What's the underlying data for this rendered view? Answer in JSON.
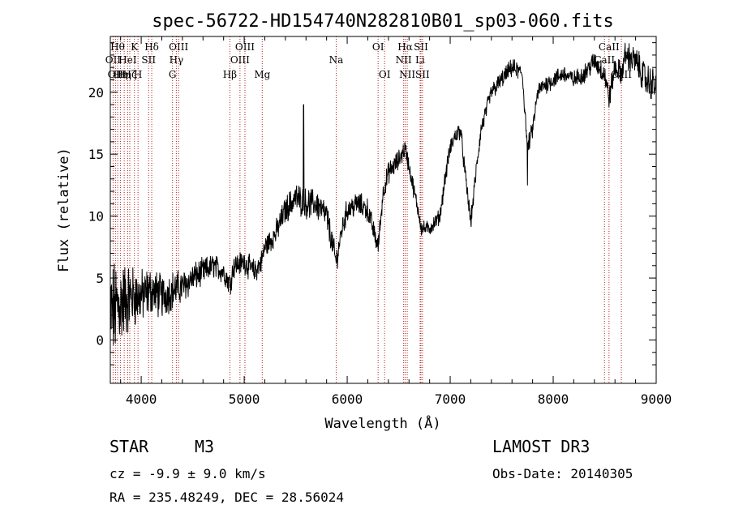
{
  "chart_data": {
    "type": "line",
    "title": "spec-56722-HD154740N282810B01_sp03-060.fits",
    "xlabel": "Wavelength (Å)",
    "ylabel": "Flux (relative)",
    "xlim": [
      3700,
      9000
    ],
    "ylim": [
      -3.5,
      24.5
    ],
    "xticks": [
      4000,
      5000,
      6000,
      7000,
      8000,
      9000
    ],
    "yticks": [
      0,
      5,
      10,
      15,
      20
    ],
    "spectrum_anchors": {
      "x": [
        3700,
        3800,
        3900,
        4000,
        4100,
        4200,
        4300,
        4400,
        4500,
        4600,
        4700,
        4800,
        4861,
        4900,
        5000,
        5100,
        5167,
        5200,
        5300,
        5400,
        5500,
        5600,
        5700,
        5800,
        5893,
        5950,
        6000,
        6100,
        6200,
        6250,
        6300,
        6350,
        6400,
        6500,
        6563,
        6600,
        6650,
        6700,
        6720,
        6800,
        6900,
        6950,
        7000,
        7050,
        7100,
        7150,
        7200,
        7250,
        7300,
        7350,
        7400,
        7500,
        7600,
        7700,
        7750,
        7800,
        7850,
        7900,
        8000,
        8100,
        8200,
        8300,
        8400,
        8498,
        8542,
        8600,
        8662,
        8700,
        8800,
        8900,
        9000
      ],
      "y": [
        2,
        3,
        3.5,
        3.5,
        4,
        3.5,
        4,
        4.3,
        5,
        5.5,
        6,
        5.5,
        4.5,
        6,
        6.3,
        5.5,
        6.3,
        7.5,
        8.5,
        10.5,
        11.5,
        11,
        11,
        10,
        6.3,
        9,
        10.5,
        11,
        10.5,
        9,
        7.5,
        12,
        13.5,
        14.5,
        15.5,
        14,
        12,
        10,
        9,
        9,
        10,
        13,
        15.5,
        16.5,
        17,
        13,
        9.5,
        13.5,
        17,
        18.5,
        20,
        21,
        22,
        21.5,
        15.5,
        17,
        20,
        20.5,
        21,
        21.5,
        21,
        21.5,
        22.5,
        21.5,
        19.5,
        22,
        21.5,
        23,
        22.5,
        21,
        20.5
      ],
      "noise_amplitude": [
        3.5,
        3,
        2.2,
        1.8,
        1.6,
        1.5,
        1.3,
        1.1,
        1,
        0.9,
        0.8,
        0.8,
        0.8,
        0.8,
        0.8,
        0.8,
        0.8,
        0.8,
        0.8,
        0.9,
        1,
        1,
        1,
        1,
        0.8,
        0.8,
        0.8,
        0.8,
        0.8,
        0.7,
        0.7,
        0.7,
        0.7,
        0.7,
        0.6,
        0.6,
        0.6,
        0.5,
        0.5,
        0.5,
        0.5,
        0.6,
        0.6,
        0.6,
        0.6,
        0.6,
        0.6,
        0.6,
        0.6,
        0.6,
        0.6,
        0.6,
        0.6,
        0.6,
        0.6,
        0.6,
        0.6,
        0.6,
        0.6,
        0.6,
        0.6,
        0.6,
        0.7,
        0.8,
        0.8,
        0.8,
        0.8,
        0.9,
        1,
        1.1,
        1.2
      ]
    },
    "spikes": [
      {
        "x": 5577,
        "y": 19
      },
      {
        "x": 7750,
        "y": 12.5
      }
    ],
    "spectral_lines": [
      {
        "wavelength": 3727,
        "label": "OII",
        "row": 2
      },
      {
        "wavelength": 3750,
        "label": "OII",
        "row": 3
      },
      {
        "wavelength": 3771,
        "label": "Hθ",
        "row": 1
      },
      {
        "wavelength": 3798,
        "label": "Hη",
        "row": 3
      },
      {
        "wavelength": 3835,
        "label": "Hη",
        "row": 3
      },
      {
        "wavelength": 3869,
        "label": "HeI",
        "row": 2
      },
      {
        "wavelength": 3889,
        "label": "Hζ",
        "row": 3
      },
      {
        "wavelength": 3934,
        "label": "K",
        "row": 1
      },
      {
        "wavelength": 3969,
        "label": "H",
        "row": 3
      },
      {
        "wavelength": 4072,
        "label": "SII",
        "row": 2
      },
      {
        "wavelength": 4102,
        "label": "Hδ",
        "row": 1
      },
      {
        "wavelength": 4304,
        "label": "G",
        "row": 3
      },
      {
        "wavelength": 4341,
        "label": "Hγ",
        "row": 2
      },
      {
        "wavelength": 4363,
        "label": "OIII",
        "row": 1
      },
      {
        "wavelength": 4861,
        "label": "Hβ",
        "row": 3
      },
      {
        "wavelength": 4959,
        "label": "OIII",
        "row": 2
      },
      {
        "wavelength": 5007,
        "label": "OIII",
        "row": 1
      },
      {
        "wavelength": 5175,
        "label": "Mg",
        "row": 3
      },
      {
        "wavelength": 5893,
        "label": "Na",
        "row": 2
      },
      {
        "wavelength": 6300,
        "label": "OI",
        "row": 1
      },
      {
        "wavelength": 6363,
        "label": "OI",
        "row": 3
      },
      {
        "wavelength": 6548,
        "label": "NII",
        "row": 2
      },
      {
        "wavelength": 6563,
        "label": "Hα",
        "row": 1
      },
      {
        "wavelength": 6583,
        "label": "NII",
        "row": 3
      },
      {
        "wavelength": 6708,
        "label": "Li",
        "row": 2
      },
      {
        "wavelength": 6716,
        "label": "SII",
        "row": 1
      },
      {
        "wavelength": 6731,
        "label": "SII",
        "row": 3
      },
      {
        "wavelength": 8498,
        "label": "CaII",
        "row": 2
      },
      {
        "wavelength": 8542,
        "label": "CaII",
        "row": 1
      },
      {
        "wavelength": 8662,
        "label": "CaII",
        "row": 3
      }
    ],
    "line_color": "#000000",
    "marker_color": "#b22222"
  },
  "info": {
    "object_class": "STAR",
    "subclass": "M3",
    "redshift": "cz = -9.9 ± 9.0 km/s",
    "coords": "RA = 235.48249, DEC =  28.56024",
    "survey": "LAMOST DR3",
    "obs_date": "Obs-Date: 20140305"
  }
}
